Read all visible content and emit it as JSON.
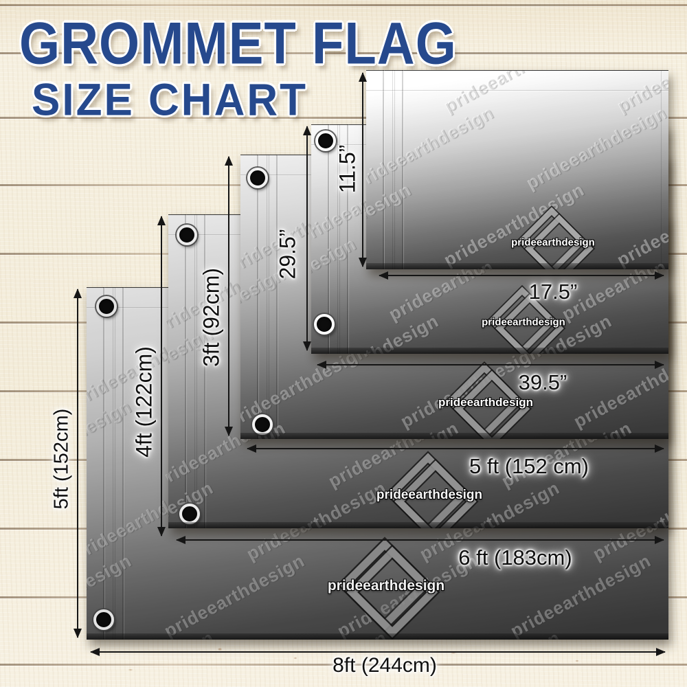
{
  "title": {
    "line1": "GROMMET FLAG",
    "line2": "SIZE CHART"
  },
  "brand": {
    "watermark_text": "prideearthdesign",
    "logo_text": "prideearthdesign"
  },
  "flags": [
    {
      "name": "11.5in x 17.5in",
      "height_label": "11.5”",
      "width_label": "17.5”"
    },
    {
      "name": "29.5in x 39.5in",
      "height_label": "29.5”",
      "width_label": "39.5”"
    },
    {
      "name": "3ft x 5ft",
      "height_label": "3ft (92cm)",
      "width_label": "5 ft (152 cm)"
    },
    {
      "name": "4ft x 6ft",
      "height_label": "4ft (122cm)",
      "width_label": "6 ft (183cm)"
    },
    {
      "name": "5ft x 8ft",
      "height_label": "5ft (152cm)",
      "width_label": "8ft (244cm)"
    }
  ],
  "colors": {
    "title_blue": "#26498d",
    "arrow_black": "#151515",
    "wood": "#f4eedd"
  }
}
